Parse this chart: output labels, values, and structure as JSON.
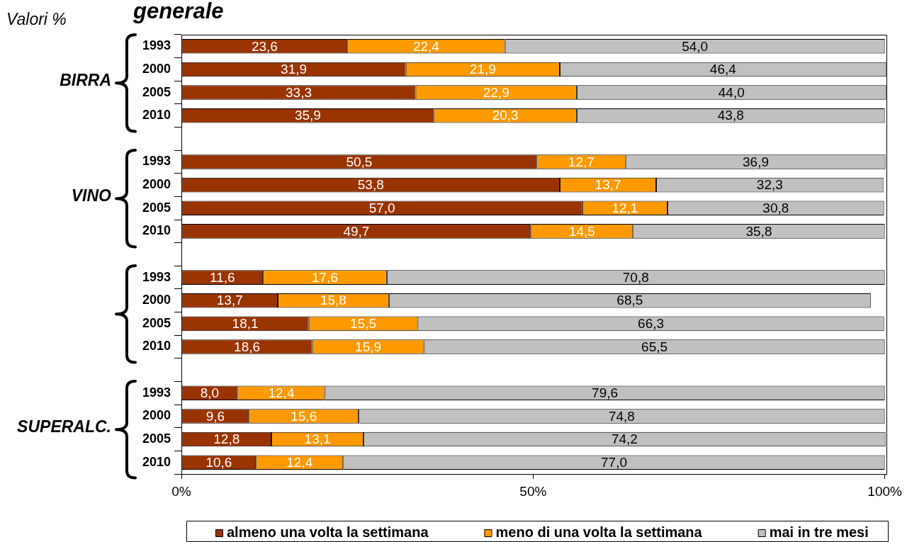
{
  "chart_data": {
    "type": "bar",
    "orientation": "horizontal",
    "stacked": true,
    "title": "generale",
    "subtitle": "Valori %",
    "categories": [
      "1993",
      "2000",
      "2005",
      "2010",
      null,
      "1993",
      "2000",
      "2005",
      "2010",
      null,
      "1993",
      "2000",
      "2005",
      "2010",
      null,
      "1993",
      "2000",
      "2005",
      "2010"
    ],
    "series": [
      {
        "name": "almeno una volta la settimana",
        "color": "#993300",
        "values": [
          23.6,
          31.9,
          33.3,
          35.9,
          null,
          50.5,
          53.8,
          57.0,
          49.7,
          null,
          11.6,
          13.7,
          18.1,
          18.6,
          null,
          8.0,
          9.6,
          12.8,
          10.6
        ],
        "value_labels": [
          "23,6",
          "31,9",
          "33,3",
          "35,9",
          null,
          "50,5",
          "53,8",
          "57,0",
          "49,7",
          null,
          "11,6",
          "13,7",
          "18,1",
          "18,6",
          null,
          "8,0",
          "9,6",
          "12,8",
          "10,6"
        ]
      },
      {
        "name": "meno di una volta la settimana",
        "color": "#ff9900",
        "values": [
          22.4,
          21.9,
          22.9,
          20.3,
          null,
          12.7,
          13.7,
          12.1,
          14.5,
          null,
          17.6,
          15.8,
          15.5,
          15.9,
          null,
          12.4,
          15.6,
          13.1,
          12.4
        ],
        "value_labels": [
          "22,4",
          "21,9",
          "22,9",
          "20,3",
          null,
          "12,7",
          "13,7",
          "12,1",
          "14,5",
          null,
          "17,6",
          "15,8",
          "15,5",
          "15,9",
          null,
          "12,4",
          "15,6",
          "13,1",
          "12,4"
        ]
      },
      {
        "name": "mai in tre mesi",
        "color": "#c0c0c0",
        "values": [
          54.0,
          46.4,
          44.0,
          43.8,
          null,
          36.9,
          32.3,
          30.8,
          35.8,
          null,
          70.8,
          68.5,
          66.3,
          65.5,
          null,
          79.6,
          74.8,
          74.2,
          77.0
        ],
        "value_labels": [
          "54,0",
          "46,4",
          "44,0",
          "43,8",
          null,
          "36,9",
          "32,3",
          "30,8",
          "35,8",
          null,
          "70,8",
          "68,5",
          "66,3",
          "65,5",
          null,
          "79,6",
          "74,8",
          "74,2",
          "77,0"
        ]
      }
    ],
    "xlim": [
      0,
      100.2
    ],
    "xticks": [
      {
        "value": 0,
        "label": "0%"
      },
      {
        "value": 50,
        "label": "50%"
      },
      {
        "value": 100,
        "label": "100%"
      }
    ],
    "legend": "bottom",
    "annotations": [
      "BIRRA",
      "VINO",
      null,
      "SUPERALC."
    ]
  }
}
